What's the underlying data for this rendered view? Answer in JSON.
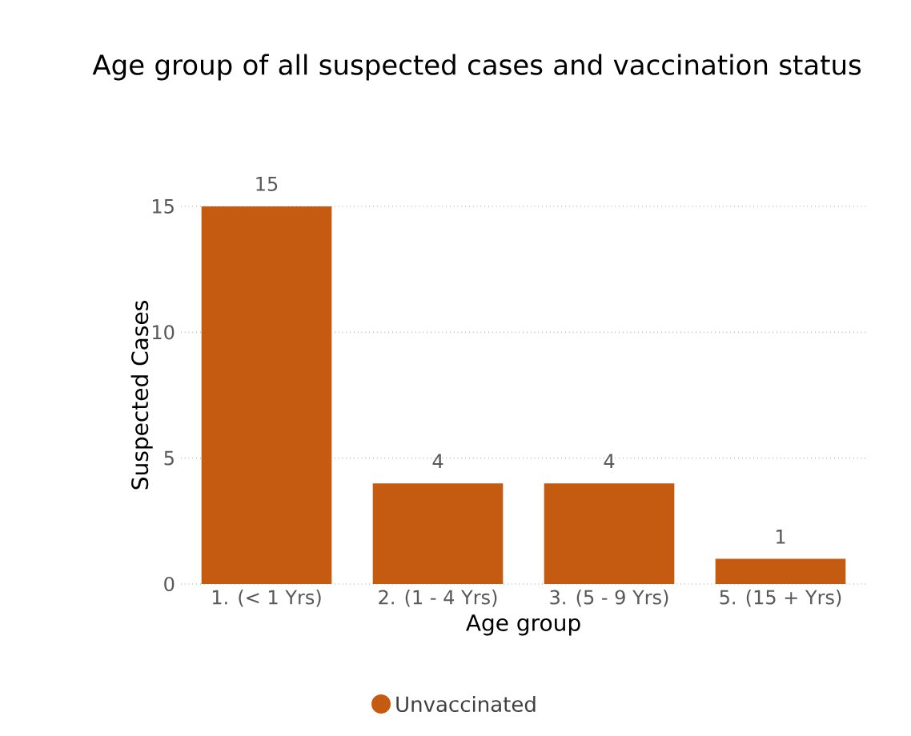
{
  "chart_data": {
    "type": "bar",
    "title": "Age group of all suspected cases and vaccination status",
    "xlabel": "Age group",
    "ylabel": "Suspected Cases",
    "categories": [
      "1. (< 1 Yrs)",
      "2. (1 - 4 Yrs)",
      "3. (5 - 9 Yrs)",
      "5. (15 + Yrs)"
    ],
    "series": [
      {
        "name": "Unvaccinated",
        "color": "#c55a11",
        "values": [
          15,
          4,
          4,
          1
        ]
      }
    ],
    "ylim": [
      0,
      15
    ],
    "yticks": [
      0,
      5,
      10,
      15
    ],
    "grid": "y",
    "data_labels": true,
    "legend": "bottom"
  }
}
